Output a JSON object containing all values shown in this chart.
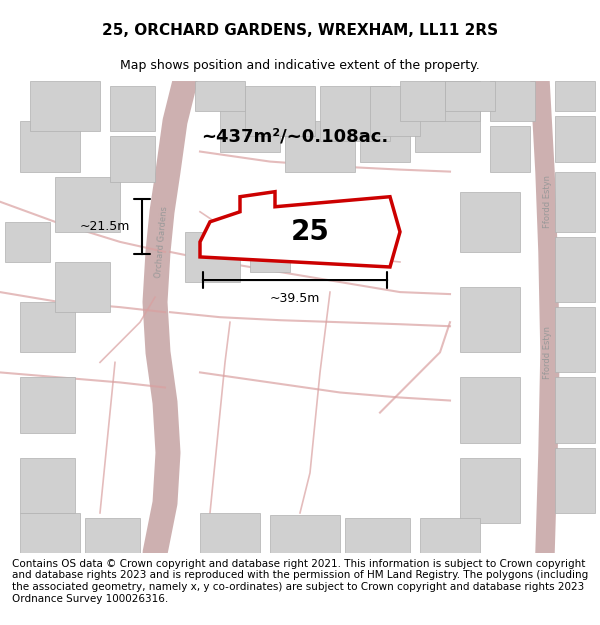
{
  "title": "25, ORCHARD GARDENS, WREXHAM, LL11 2RS",
  "subtitle": "Map shows position and indicative extent of the property.",
  "area_label": "~437m²/~0.108ac.",
  "property_number": "25",
  "dim_width": "~39.5m",
  "dim_height": "~21.5m",
  "footer": "Contains OS data © Crown copyright and database right 2021. This information is subject to Crown copyright and database rights 2023 and is reproduced with the permission of HM Land Registry. The polygons (including the associated geometry, namely x, y co-ordinates) are subject to Crown copyright and database rights 2023 Ordnance Survey 100026316.",
  "bg_color": "#f5f5f5",
  "map_bg": "#f0f0f0",
  "road_color": "#d9a0a0",
  "building_color": "#d9d9d9",
  "property_outline_color": "#cc0000",
  "property_fill": "#ffffff",
  "road_label_color": "#888888",
  "title_fontsize": 11,
  "subtitle_fontsize": 9,
  "footer_fontsize": 7.5
}
